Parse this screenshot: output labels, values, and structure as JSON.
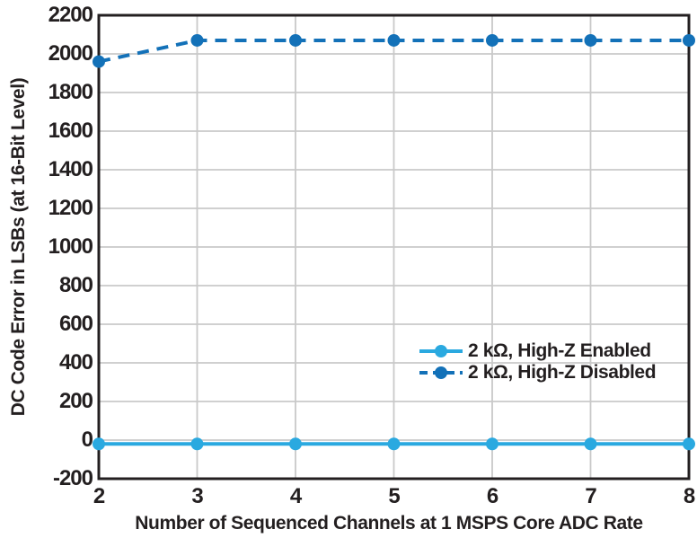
{
  "chart_data": {
    "type": "line",
    "title": "",
    "xlabel": "Number of Sequenced Channels at 1 MSPS Core ADC Rate",
    "ylabel": "DC Code Error in LSBs (at 16-Bit Level)",
    "x": [
      2,
      3,
      4,
      5,
      6,
      7,
      8
    ],
    "xlim": [
      2,
      8
    ],
    "xtick_step": 1,
    "ylim": [
      -200,
      2200
    ],
    "ytick_step": 200,
    "grid": "on",
    "legend_position": "inside lower-right",
    "series": [
      {
        "name": "2 kΩ, High-Z Enabled",
        "style": "solid",
        "marker": "circle",
        "color": "#2AA9E0",
        "values": [
          -20,
          -20,
          -20,
          -20,
          -20,
          -20,
          -20
        ]
      },
      {
        "name": "2 kΩ, High-Z Disabled",
        "style": "dashed",
        "marker": "circle",
        "color": "#1371B8",
        "values": [
          1960,
          2070,
          2070,
          2070,
          2070,
          2070,
          2070
        ]
      }
    ]
  },
  "colors": {
    "background": "#ffffff",
    "frame": "#231f20",
    "grid": "#c9c9c9",
    "text": "#231f20"
  }
}
